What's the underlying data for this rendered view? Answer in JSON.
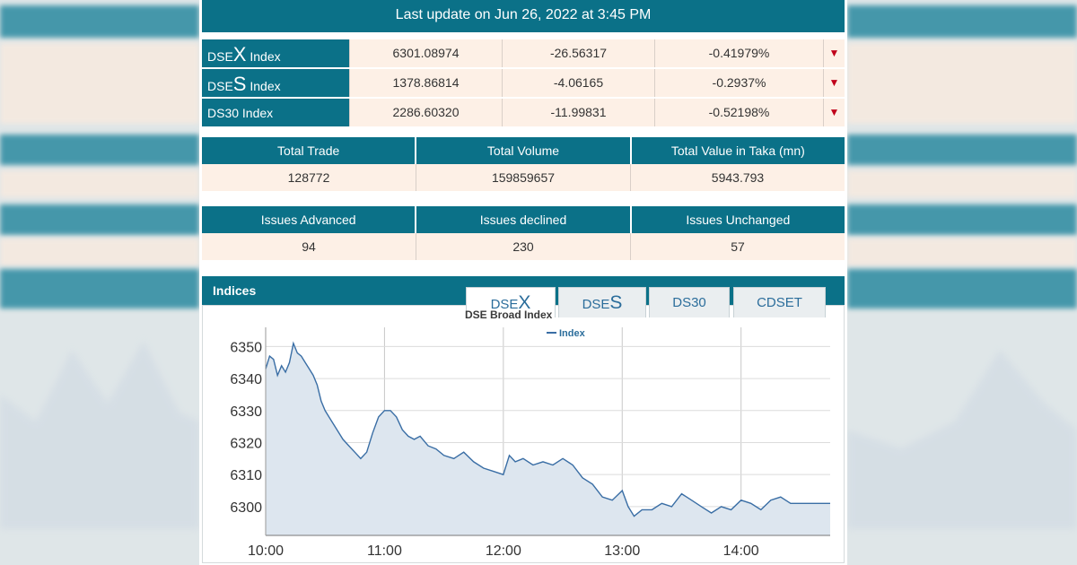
{
  "header": {
    "last_update": "Last update on Jun 26, 2022 at 3:45 PM"
  },
  "indices": [
    {
      "prefix": "DSE",
      "big": "X",
      "suffix": " Index",
      "value": "6301.08974",
      "change": "-26.56317",
      "pct": "-0.41979%",
      "direction": "down"
    },
    {
      "prefix": "DSE",
      "big": "S",
      "suffix": " Index",
      "value": "1378.86814",
      "change": "-4.06165",
      "pct": "-0.2937%",
      "direction": "down"
    },
    {
      "prefix": "DS30 Index",
      "big": "",
      "suffix": "",
      "value": "2286.60320",
      "change": "-11.99831",
      "pct": "-0.52198%",
      "direction": "down"
    }
  ],
  "trade_stats": {
    "headers": [
      "Total Trade",
      "Total Volume",
      "Total Value in Taka (mn)"
    ],
    "values": [
      "128772",
      "159859657",
      "5943.793"
    ]
  },
  "issue_stats": {
    "headers": [
      "Issues Advanced",
      "Issues declined",
      "Issues Unchanged"
    ],
    "values": [
      "94",
      "230",
      "57"
    ]
  },
  "indices_panel": {
    "title": "Indices",
    "tabs": [
      {
        "prefix": "DSE",
        "big": "X",
        "active": true
      },
      {
        "prefix": "DSE",
        "big": "S",
        "active": false
      },
      {
        "prefix": "DS30",
        "big": "",
        "active": false
      },
      {
        "prefix": "CDSET",
        "big": "",
        "active": false
      }
    ]
  },
  "colors": {
    "header_bg": "#0b7188",
    "cell_bg": "#fdf0e6",
    "down_arrow": "#c0001a",
    "line": "#3a6ea5",
    "area": "#dde6ef"
  },
  "chart_data": {
    "type": "area",
    "title": "DSE Broad Index",
    "legend": [
      "Index"
    ],
    "legend_position": "top-center",
    "grid": true,
    "xlabel": "",
    "ylabel": "",
    "x_ticks": [
      "10:00",
      "11:00",
      "12:00",
      "13:00",
      "14:00"
    ],
    "y_ticks": [
      6300,
      6310,
      6320,
      6330,
      6340,
      6350
    ],
    "ylim": [
      6291,
      6356
    ],
    "xlim": [
      "10:00",
      "14:45"
    ],
    "series": [
      {
        "name": "Index",
        "points": [
          [
            "10:00",
            6343
          ],
          [
            "10:02",
            6347
          ],
          [
            "10:04",
            6346
          ],
          [
            "10:06",
            6341
          ],
          [
            "10:08",
            6344
          ],
          [
            "10:10",
            6342
          ],
          [
            "10:12",
            6345
          ],
          [
            "10:14",
            6351
          ],
          [
            "10:16",
            6348
          ],
          [
            "10:18",
            6347
          ],
          [
            "10:20",
            6345
          ],
          [
            "10:22",
            6343
          ],
          [
            "10:24",
            6341
          ],
          [
            "10:26",
            6338
          ],
          [
            "10:28",
            6333
          ],
          [
            "10:30",
            6330
          ],
          [
            "10:33",
            6327
          ],
          [
            "10:36",
            6324
          ],
          [
            "10:39",
            6321
          ],
          [
            "10:42",
            6319
          ],
          [
            "10:45",
            6317
          ],
          [
            "10:48",
            6315
          ],
          [
            "10:51",
            6317
          ],
          [
            "10:54",
            6323
          ],
          [
            "10:57",
            6328
          ],
          [
            "11:00",
            6330
          ],
          [
            "11:03",
            6330
          ],
          [
            "11:06",
            6328
          ],
          [
            "11:09",
            6324
          ],
          [
            "11:12",
            6322
          ],
          [
            "11:15",
            6321
          ],
          [
            "11:18",
            6322
          ],
          [
            "11:22",
            6319
          ],
          [
            "11:26",
            6318
          ],
          [
            "11:30",
            6316
          ],
          [
            "11:35",
            6315
          ],
          [
            "11:40",
            6317
          ],
          [
            "11:45",
            6314
          ],
          [
            "11:50",
            6312
          ],
          [
            "11:55",
            6311
          ],
          [
            "12:00",
            6310
          ],
          [
            "12:03",
            6316
          ],
          [
            "12:06",
            6314
          ],
          [
            "12:10",
            6315
          ],
          [
            "12:15",
            6313
          ],
          [
            "12:20",
            6314
          ],
          [
            "12:25",
            6313
          ],
          [
            "12:30",
            6315
          ],
          [
            "12:35",
            6313
          ],
          [
            "12:40",
            6309
          ],
          [
            "12:45",
            6307
          ],
          [
            "12:50",
            6303
          ],
          [
            "12:55",
            6302
          ],
          [
            "13:00",
            6305
          ],
          [
            "13:03",
            6300
          ],
          [
            "13:06",
            6297
          ],
          [
            "13:10",
            6299
          ],
          [
            "13:15",
            6299
          ],
          [
            "13:20",
            6301
          ],
          [
            "13:25",
            6300
          ],
          [
            "13:30",
            6304
          ],
          [
            "13:35",
            6302
          ],
          [
            "13:40",
            6300
          ],
          [
            "13:45",
            6298
          ],
          [
            "13:50",
            6300
          ],
          [
            "13:55",
            6299
          ],
          [
            "14:00",
            6302
          ],
          [
            "14:05",
            6301
          ],
          [
            "14:10",
            6299
          ],
          [
            "14:15",
            6302
          ],
          [
            "14:20",
            6303
          ],
          [
            "14:25",
            6301
          ],
          [
            "14:30",
            6301
          ],
          [
            "14:35",
            6301
          ],
          [
            "14:40",
            6301
          ],
          [
            "14:45",
            6301
          ]
        ]
      }
    ]
  }
}
